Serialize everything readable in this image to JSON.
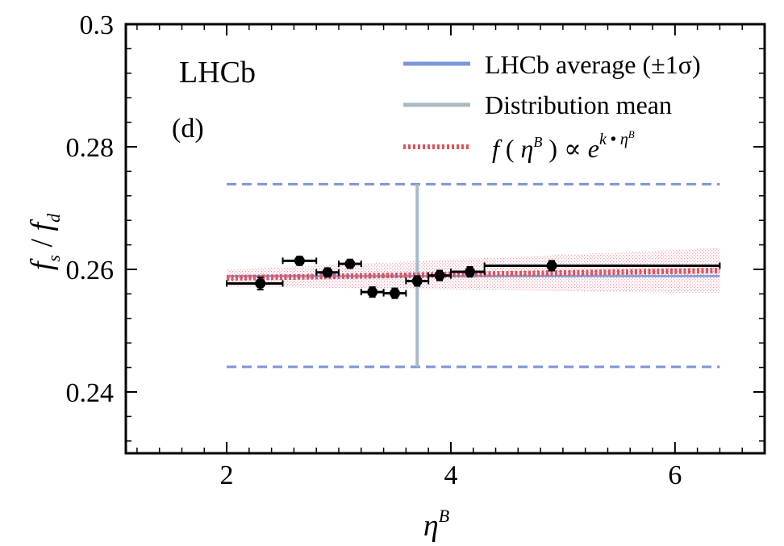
{
  "chart_data": {
    "type": "scatter",
    "experiment_label": "LHCb",
    "panel_label": "(d)",
    "xlabel": {
      "base": "η",
      "sup": "B"
    },
    "ylabel": {
      "f1": "f",
      "sub1": "s",
      "slash": " / ",
      "f2": "f",
      "sub2": "d"
    },
    "xlim": [
      1.1,
      6.8
    ],
    "ylim": [
      0.23,
      0.3
    ],
    "x_ticks": [
      2,
      4,
      6
    ],
    "x_tick_labels": [
      "2",
      "4",
      "6"
    ],
    "y_ticks": [
      0.24,
      0.26,
      0.28,
      0.3
    ],
    "y_tick_labels": [
      "0.24",
      "0.26",
      "0.28",
      "0.3"
    ],
    "grid": false,
    "legend_position": "top-right",
    "legend": [
      {
        "id": "avg",
        "label": "LHCb average (±1σ)",
        "color": "#7b96d6",
        "style": "solid"
      },
      {
        "id": "mean",
        "label": "Distribution mean",
        "color": "#a9bac4",
        "style": "solid"
      },
      {
        "id": "fit",
        "label": "f ( η^B ) ∝ e^(k·η^B)",
        "color": "#e0525f",
        "style": "dotted",
        "parts": {
          "f": "f",
          "open": " ( ",
          "eta": "η",
          "etasup": "B",
          "close": " ) ∝ ",
          "e": "e",
          "k": "k",
          "dot": " • ",
          "eta2": "η",
          "etasup2": "B"
        }
      }
    ],
    "lhcb_average": {
      "value": 0.2589,
      "band_low": 0.2441,
      "band_high": 0.2739,
      "x_range": [
        2.0,
        6.4
      ]
    },
    "distribution_mean": {
      "x": 3.7,
      "y_range": [
        0.2441,
        0.2739
      ]
    },
    "fit": {
      "x_range": [
        2.0,
        6.4
      ],
      "y_start": 0.2586,
      "y_end": 0.2598,
      "band_start": 0.0014,
      "band_end": 0.0037
    },
    "data_points": [
      {
        "x": 2.3,
        "y": 0.2577,
        "xlow": 2.0,
        "xhigh": 2.5,
        "yerr": 0.001
      },
      {
        "x": 2.65,
        "y": 0.2614,
        "xlow": 2.5,
        "xhigh": 2.8,
        "yerr": 0.0007
      },
      {
        "x": 2.9,
        "y": 0.2595,
        "xlow": 2.8,
        "xhigh": 3.0,
        "yerr": 0.0007
      },
      {
        "x": 3.1,
        "y": 0.2609,
        "xlow": 3.0,
        "xhigh": 3.2,
        "yerr": 0.0007
      },
      {
        "x": 3.3,
        "y": 0.2563,
        "xlow": 3.2,
        "xhigh": 3.4,
        "yerr": 0.0008
      },
      {
        "x": 3.5,
        "y": 0.2561,
        "xlow": 3.4,
        "xhigh": 3.6,
        "yerr": 0.0008
      },
      {
        "x": 3.7,
        "y": 0.2581,
        "xlow": 3.6,
        "xhigh": 3.8,
        "yerr": 0.0008
      },
      {
        "x": 3.9,
        "y": 0.259,
        "xlow": 3.8,
        "xhigh": 4.0,
        "yerr": 0.0008
      },
      {
        "x": 4.17,
        "y": 0.2596,
        "xlow": 4.0,
        "xhigh": 4.3,
        "yerr": 0.0008
      },
      {
        "x": 4.9,
        "y": 0.2606,
        "xlow": 4.3,
        "xhigh": 6.4,
        "yerr": 0.0008
      }
    ]
  }
}
